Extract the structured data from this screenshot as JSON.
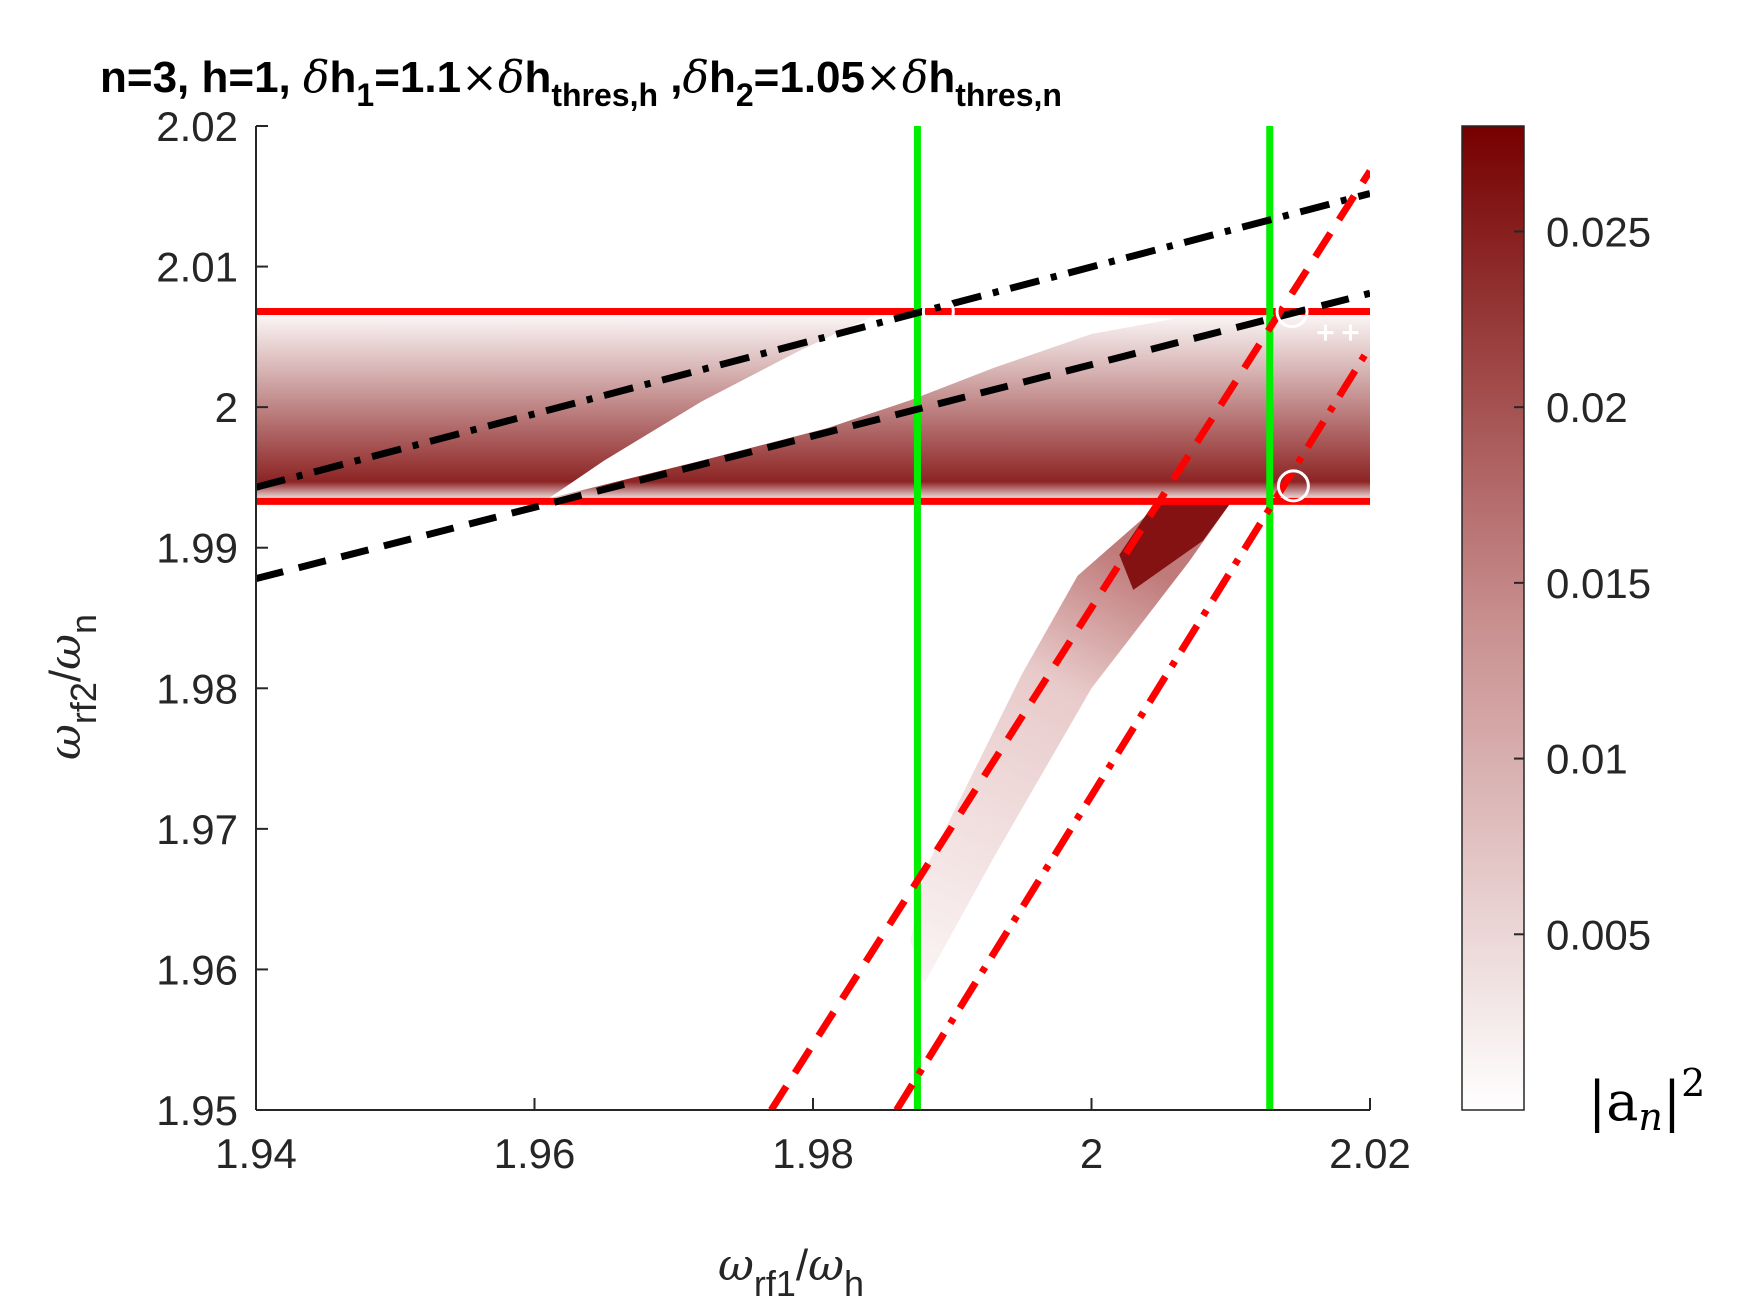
{
  "chart_data": {
    "type": "heatmap",
    "title": {
      "n": "n=3, ",
      "h": "h=1, ",
      "d1_prefix": "h",
      "d1_sub": "1",
      "d1_eq": "=1.1",
      "times": "×",
      "thr_h_base": "h",
      "thr_h_sub": "thres,h",
      "sep": " ,",
      "d2_prefix": "h",
      "d2_sub": "2",
      "d2_eq": "=1.05",
      "thr_n_base": "h",
      "thr_n_sub": "thres,n",
      "delta": "δ"
    },
    "xlabel": {
      "omega": "ω",
      "num_sub": "rf1",
      "slash": "/",
      "den_sub": "h"
    },
    "ylabel": {
      "omega": "ω",
      "num_sub": "rf2",
      "slash": "/",
      "den_sub": "n"
    },
    "xlim": [
      1.94,
      2.02
    ],
    "ylim": [
      1.95,
      2.02
    ],
    "x_ticks": [
      1.94,
      1.96,
      1.98,
      2.0,
      2.02
    ],
    "x_tick_labels": [
      "1.94",
      "1.96",
      "1.98",
      "2",
      "2.02"
    ],
    "y_ticks": [
      1.95,
      1.96,
      1.97,
      1.98,
      1.99,
      2.0,
      2.01,
      2.02
    ],
    "y_tick_labels": [
      "1.95",
      "1.96",
      "1.97",
      "1.98",
      "1.99",
      "2",
      "2.01",
      "2.02"
    ],
    "colorbar": {
      "label": "|a",
      "label_sub": "n",
      "label_close": "|",
      "label_sup": "2",
      "range": [
        0,
        0.028
      ],
      "ticks": [
        0.005,
        0.01,
        0.015,
        0.02,
        0.025
      ],
      "tick_labels": [
        "0.005",
        "0.01",
        "0.015",
        "0.02",
        "0.025"
      ],
      "colors": [
        "#ffffff",
        "#7a0000"
      ]
    },
    "band": {
      "y_range": [
        1.9933,
        2.0068
      ],
      "peak_y": 1.9947,
      "peak_value": 0.024,
      "edge_value": 0.0005,
      "white_wedge": [
        [
          1.961,
          1.9935
        ],
        [
          1.972,
          1.9962
        ],
        [
          1.981,
          1.9985
        ],
        [
          1.987,
          2.0005
        ],
        [
          1.993,
          2.0028
        ],
        [
          2.0,
          2.0052
        ],
        [
          2.006,
          2.0063
        ],
        [
          1.9885,
          2.0068
        ],
        [
          1.985,
          2.0068
        ],
        [
          1.979,
          2.004
        ],
        [
          1.972,
          2.0004
        ],
        [
          1.965,
          1.9962
        ]
      ]
    },
    "lower_region": {
      "polygon": [
        [
          1.987,
          1.962
        ],
        [
          1.988,
          1.959
        ],
        [
          1.993,
          1.968
        ],
        [
          2.0,
          1.98
        ],
        [
          2.007,
          1.989
        ],
        [
          2.01,
          1.9932
        ],
        [
          2.005,
          1.9932
        ],
        [
          1.999,
          1.988
        ],
        [
          1.995,
          1.981
        ],
        [
          1.991,
          1.973
        ],
        [
          1.988,
          1.967
        ]
      ],
      "dark_polygon": [
        [
          2.003,
          1.987
        ],
        [
          2.008,
          1.9905
        ],
        [
          2.01,
          1.9932
        ],
        [
          2.0045,
          1.9932
        ],
        [
          2.002,
          1.9895
        ]
      ],
      "value_low": 0.0015,
      "value_high": 0.026
    },
    "lines": [
      {
        "kind": "horizontal",
        "y": 1.9933,
        "color": "#ff0000",
        "style": "solid"
      },
      {
        "kind": "horizontal",
        "y": 2.0068,
        "color": "#ff0000",
        "style": "solid"
      },
      {
        "kind": "vertical",
        "x": 1.9875,
        "color": "#00ee00",
        "style": "solid"
      },
      {
        "kind": "vertical",
        "x": 2.0128,
        "color": "#00ee00",
        "style": "solid"
      },
      {
        "kind": "segment",
        "p1": [
          1.94,
          1.9943
        ],
        "p2": [
          2.02,
          2.0152
        ],
        "color": "#000000",
        "style": "dashdot"
      },
      {
        "kind": "segment",
        "p1": [
          1.94,
          1.9878
        ],
        "p2": [
          2.02,
          2.0081
        ],
        "color": "#000000",
        "style": "dash"
      },
      {
        "kind": "segment",
        "p1": [
          1.977,
          1.95
        ],
        "p2": [
          2.02,
          2.0168
        ],
        "color": "#ff0000",
        "style": "dash"
      },
      {
        "kind": "segment",
        "p1": [
          1.986,
          1.95
        ],
        "p2": [
          2.02,
          2.0043
        ],
        "color": "#ff0000",
        "style": "dashdot"
      }
    ],
    "circles": [
      [
        1.989,
        2.0068
      ],
      [
        2.0144,
        2.0068
      ],
      [
        2.0145,
        1.9944
      ]
    ],
    "plus_markers": [
      [
        2.0168,
        2.0053
      ],
      [
        2.0186,
        2.0053
      ]
    ]
  }
}
